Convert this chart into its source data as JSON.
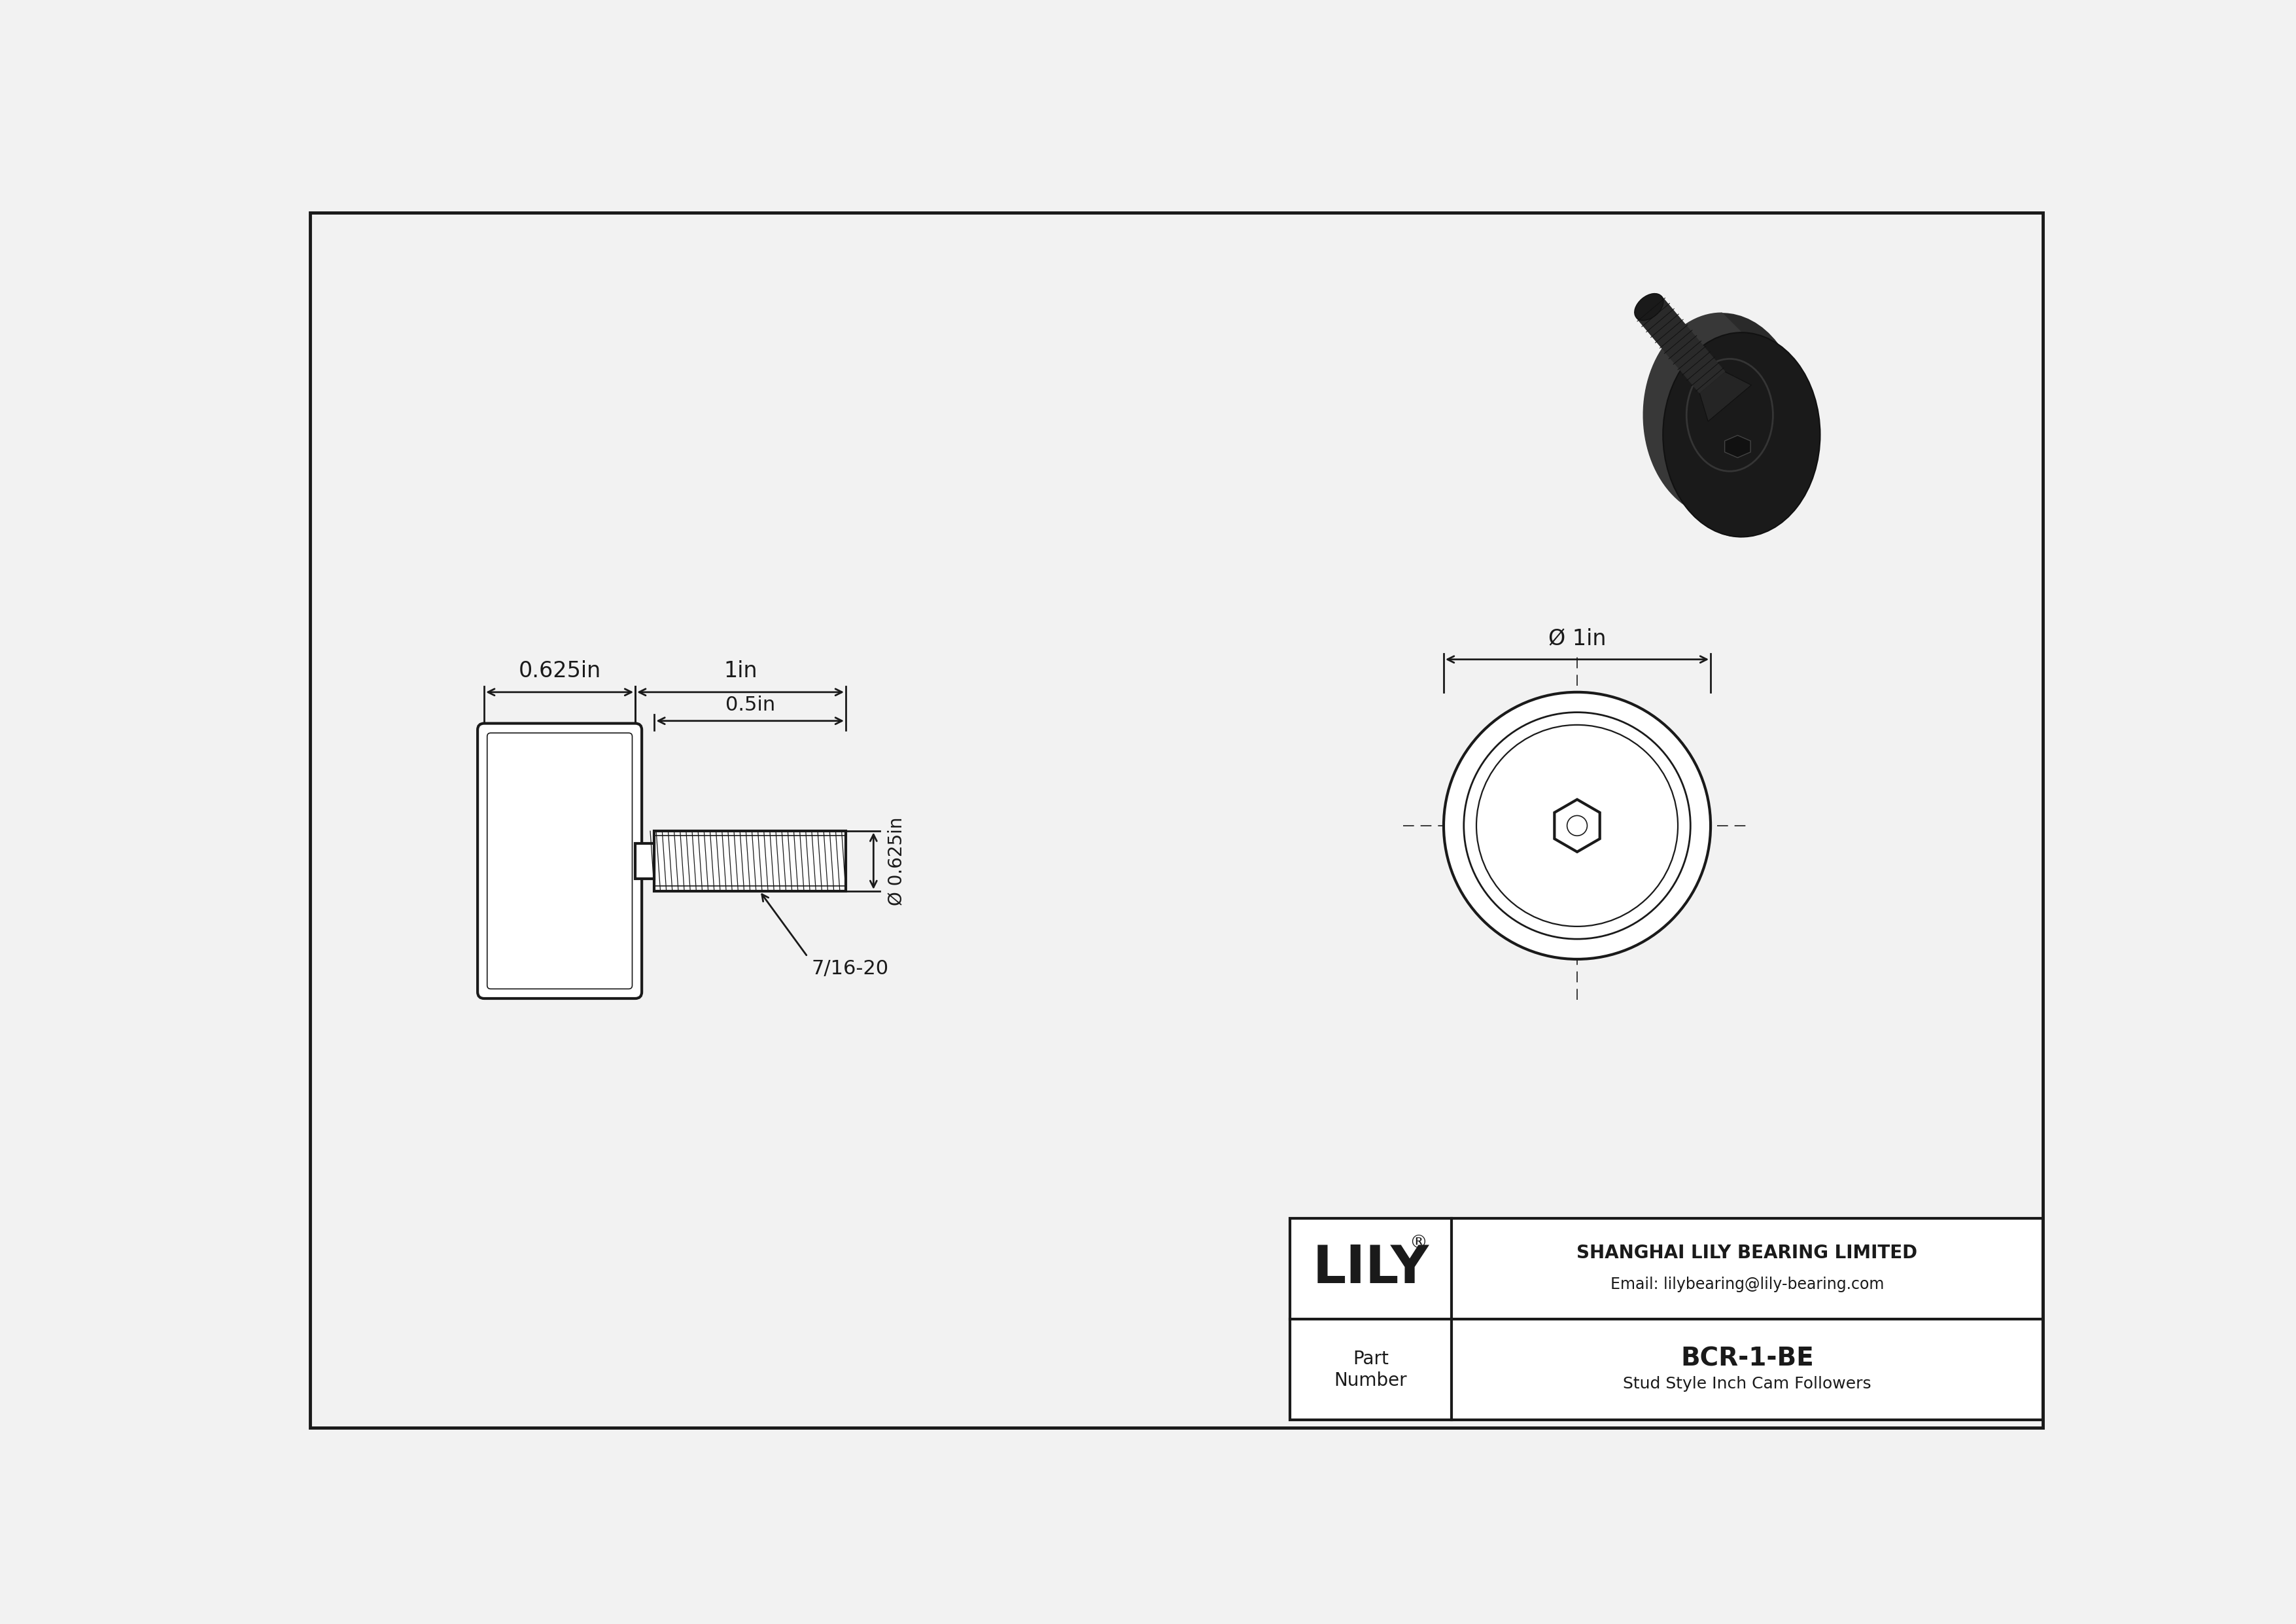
{
  "bg_color": "#f2f2f2",
  "line_color": "#1a1a1a",
  "title": "BCR-1-BE",
  "subtitle": "Stud Style Inch Cam Followers",
  "company": "SHANGHAI LILY BEARING LIMITED",
  "email": "Email: lilybearing@lily-bearing.com",
  "part_label": "Part\nNumber",
  "dim_625": "0.625in",
  "dim_1in": "1in",
  "dim_05in": "0.5in",
  "dim_d625": "Ø 0.625in",
  "dim_d1in": "Ø 1in",
  "thread_label": "7/16-20",
  "lw": 3.0,
  "dim_lw": 2.0,
  "thin_lw": 1.2
}
